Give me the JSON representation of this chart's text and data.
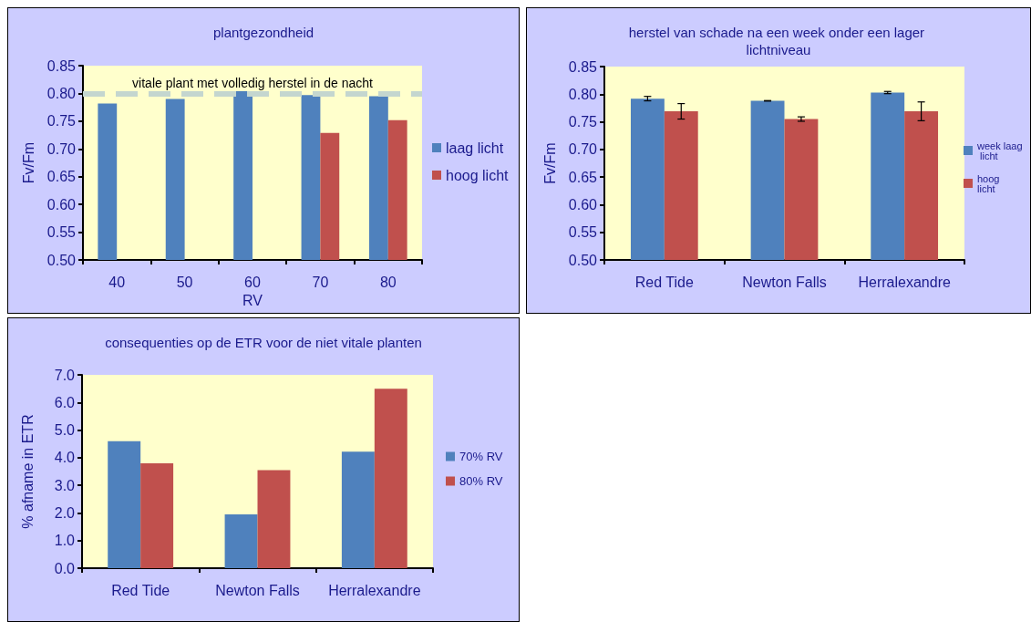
{
  "chart_data": [
    {
      "type": "bar",
      "title": "plantgezondheid",
      "xlabel": "RV",
      "ylabel": "Fv/Fm",
      "categories": [
        "40",
        "50",
        "60",
        "70",
        "80"
      ],
      "series": [
        {
          "name": "laag licht",
          "color": "#4f81bd",
          "values": [
            0.782,
            0.79,
            0.804,
            0.797,
            0.795
          ]
        },
        {
          "name": "hoog licht",
          "color": "#c0504d",
          "values": [
            null,
            null,
            null,
            0.729,
            0.752
          ]
        }
      ],
      "ylim": [
        0.5,
        0.85
      ],
      "yticks": [
        {
          "value": 0.5,
          "label": "0.50"
        },
        {
          "value": 0.55,
          "label": "0.55"
        },
        {
          "value": 0.6,
          "label": "0.60"
        },
        {
          "value": 0.65,
          "label": "0.65"
        },
        {
          "value": 0.7,
          "label": "0.70"
        },
        {
          "value": 0.75,
          "label": "0.75"
        },
        {
          "value": 0.8,
          "label": "0.80"
        },
        {
          "value": 0.85,
          "label": "0.85"
        }
      ],
      "ref_lines": [
        {
          "axis": "y",
          "value": 0.8,
          "label": "vitale plant met volledig herstel in de nacht",
          "color": "#c4d6cf",
          "line_style": "dashed"
        }
      ],
      "grid": false,
      "legend": "right"
    },
    {
      "type": "bar",
      "title": "herstel van schade na een week onder een lager lichtniveau",
      "ylabel": "Fv/Fm",
      "categories": [
        "Red Tide",
        "Newton Falls",
        "Herralexandre"
      ],
      "series": [
        {
          "name": "week laag licht",
          "color": "#4f81bd",
          "values": [
            0.792,
            0.788,
            0.803
          ],
          "errors": [
            0.004,
            0.0005,
            0.002
          ]
        },
        {
          "name": "hoog licht",
          "color": "#c0504d",
          "values": [
            0.769,
            0.755,
            0.769
          ],
          "errors": [
            0.014,
            0.004,
            0.017
          ]
        }
      ],
      "ylim": [
        0.5,
        0.85
      ],
      "yticks": [
        {
          "value": 0.5,
          "label": "0.50"
        },
        {
          "value": 0.55,
          "label": "0.55"
        },
        {
          "value": 0.6,
          "label": "0.60"
        },
        {
          "value": 0.65,
          "label": "0.65"
        },
        {
          "value": 0.7,
          "label": "0.70"
        },
        {
          "value": 0.75,
          "label": "0.75"
        },
        {
          "value": 0.8,
          "label": "0.80"
        },
        {
          "value": 0.85,
          "label": "0.85"
        }
      ],
      "grid": false,
      "legend": "right"
    },
    {
      "type": "bar",
      "title": "consequenties op de ETR voor de niet vitale planten",
      "ylabel": "% afname in ETR",
      "categories": [
        "Red Tide",
        "Newton Falls",
        "Herralexandre"
      ],
      "series": [
        {
          "name": "70% RV",
          "color": "#4f81bd",
          "values": [
            4.6,
            1.95,
            4.22
          ]
        },
        {
          "name": "80% RV",
          "color": "#c0504d",
          "values": [
            3.8,
            3.55,
            6.5
          ]
        }
      ],
      "ylim": [
        0,
        7
      ],
      "yticks": [
        {
          "value": 0,
          "label": "0.0"
        },
        {
          "value": 1,
          "label": "1.0"
        },
        {
          "value": 2,
          "label": "2.0"
        },
        {
          "value": 3,
          "label": "3.0"
        },
        {
          "value": 4,
          "label": "4.0"
        },
        {
          "value": 5,
          "label": "5.0"
        },
        {
          "value": 6,
          "label": "6.0"
        },
        {
          "value": 7,
          "label": "7.0"
        }
      ],
      "grid": false,
      "legend": "right"
    }
  ]
}
